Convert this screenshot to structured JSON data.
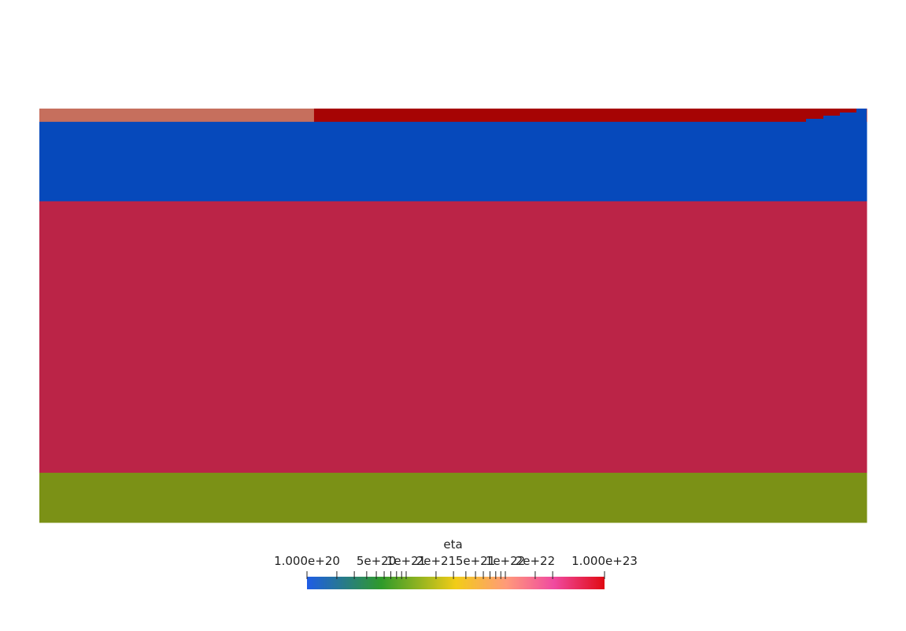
{
  "chart_data": {
    "type": "heatmap",
    "field": "eta",
    "scale": "log",
    "colormap": [
      "#1f5ce6",
      "#2f9a2a",
      "#f2cc17",
      "#ff9a7a",
      "#f04aa0",
      "#e00a12"
    ],
    "range": [
      1e+20,
      1e+23
    ],
    "layers": [
      {
        "name": "upper-left block",
        "color": "#c66f5d",
        "x": [
          0.0,
          0.332
        ],
        "y": [
          0.0,
          0.065
        ]
      },
      {
        "name": "top strip",
        "color": "#a60404",
        "x": [
          0.332,
          1.0
        ],
        "y": [
          0.0,
          0.032
        ]
      },
      {
        "name": "upper layer",
        "color": "#0649bb",
        "x": [
          0.0,
          1.0
        ],
        "y": [
          0.032,
          0.224
        ]
      },
      {
        "name": "middle layer",
        "color": "#bb2447",
        "x": [
          0.0,
          1.0
        ],
        "y": [
          0.224,
          0.88
        ]
      },
      {
        "name": "bottom layer",
        "color": "#7b9116",
        "x": [
          0.0,
          1.0
        ],
        "y": [
          0.88,
          1.0
        ]
      }
    ],
    "colorbar": {
      "title": "eta",
      "label_texts": [
        "1.000e+20",
        "5e+20",
        "1e+21",
        "2e+21",
        "5e+21",
        "1e+22",
        "2e+22",
        "1.000e+23"
      ],
      "label_values": [
        1e+20,
        5e+20,
        1e+21,
        2e+21,
        5e+21,
        1e+22,
        2e+22,
        1e+23
      ],
      "minor_ticks": [
        2e+20,
        3e+20,
        4e+20,
        5e+20,
        6e+20,
        7e+20,
        8e+20,
        9e+20,
        1e+21,
        2e+21,
        3e+21,
        4e+21,
        5e+21,
        6e+21,
        7e+21,
        8e+21,
        9e+21,
        1e+22,
        2e+22,
        3e+22
      ]
    }
  }
}
